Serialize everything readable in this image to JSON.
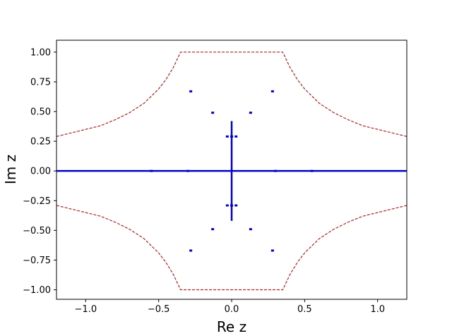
{
  "chart_data": {
    "type": "line",
    "xlabel": "Re z",
    "ylabel": "Im z",
    "xlim": [
      -1.2,
      1.2
    ],
    "ylim": [
      -1.08,
      1.1
    ],
    "x_ticks": [
      -1.0,
      -0.5,
      0.0,
      0.5,
      1.0
    ],
    "x_tick_labels": [
      "−1.0",
      "−0.5",
      "0.0",
      "0.5",
      "1.0"
    ],
    "y_ticks": [
      1.0,
      0.75,
      0.5,
      0.25,
      0.0,
      -0.25,
      -0.5,
      -0.75,
      -1.0
    ],
    "y_tick_labels": [
      "1.00",
      "0.75",
      "0.50",
      "0.25",
      "0.00",
      "−0.25",
      "−0.50",
      "−0.75",
      "−1.00"
    ],
    "grid": false,
    "colors": {
      "boundary": "#b22222",
      "spectrum": "#0000cc"
    },
    "series": [
      {
        "style": "dashed",
        "color": "#b22222",
        "x": [
          -1.2,
          -1.1,
          -1.0,
          -0.9,
          -0.8,
          -0.7,
          -0.6,
          -0.5,
          -0.45,
          -0.4,
          -0.35,
          0.35,
          0.4,
          0.45,
          0.5,
          0.6,
          0.7,
          0.8,
          0.9,
          1.0,
          1.1,
          1.2
        ],
        "y": [
          0.29,
          0.32,
          0.35,
          0.38,
          0.43,
          0.49,
          0.57,
          0.69,
          0.77,
          0.87,
          1.0,
          1.0,
          0.87,
          0.77,
          0.69,
          0.57,
          0.49,
          0.43,
          0.38,
          0.35,
          0.32,
          0.29
        ]
      },
      {
        "style": "dashed",
        "color": "#b22222",
        "x": [
          -1.2,
          -1.1,
          -1.0,
          -0.9,
          -0.8,
          -0.7,
          -0.6,
          -0.5,
          -0.45,
          -0.4,
          -0.35,
          0.35,
          0.4,
          0.45,
          0.5,
          0.6,
          0.7,
          0.8,
          0.9,
          1.0,
          1.1,
          1.2
        ],
        "y": [
          -0.29,
          -0.32,
          -0.35,
          -0.38,
          -0.43,
          -0.49,
          -0.57,
          -0.69,
          -0.77,
          -0.87,
          -1.0,
          -1.0,
          -0.87,
          -0.77,
          -0.69,
          -0.57,
          -0.49,
          -0.43,
          -0.38,
          -0.35,
          -0.32,
          -0.29
        ]
      },
      {
        "style": "solid",
        "color": "#0000cc",
        "x": [
          -1.2,
          1.2
        ],
        "y": [
          0.0,
          0.0
        ]
      },
      {
        "style": "solid",
        "color": "#0000cc",
        "x": [
          0.0,
          0.0
        ],
        "y": [
          -0.42,
          0.42
        ]
      },
      {
        "style": "markers",
        "color": "#0000cc",
        "x": [
          -0.28,
          0.28,
          -0.13,
          0.13,
          -0.03,
          0.0,
          0.03,
          -0.03,
          0.0,
          0.03,
          -0.13,
          0.13,
          -0.28,
          0.28,
          -0.55,
          -0.3,
          0.3,
          0.55
        ],
        "y": [
          0.67,
          0.67,
          0.49,
          0.49,
          0.29,
          0.29,
          0.29,
          -0.29,
          -0.29,
          -0.29,
          -0.49,
          -0.49,
          -0.67,
          -0.67,
          0.0,
          0.0,
          0.0,
          0.0
        ]
      }
    ]
  }
}
